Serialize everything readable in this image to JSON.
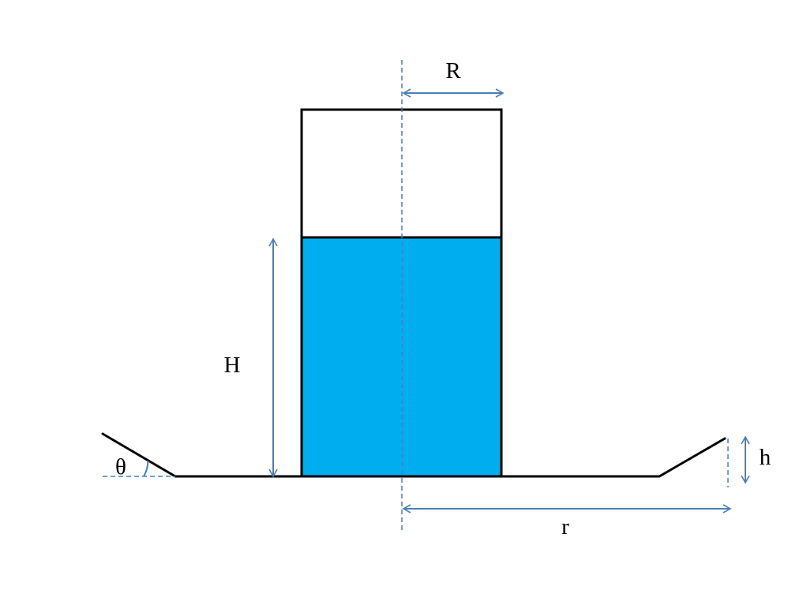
{
  "colors": {
    "water": "#00adef",
    "outline": "#000000",
    "dimension": "#4a7eb8"
  },
  "labels": {
    "radius_upper": "R",
    "water_height": "H",
    "angle": "θ",
    "rim_height": "h",
    "radius_lower": "r"
  }
}
